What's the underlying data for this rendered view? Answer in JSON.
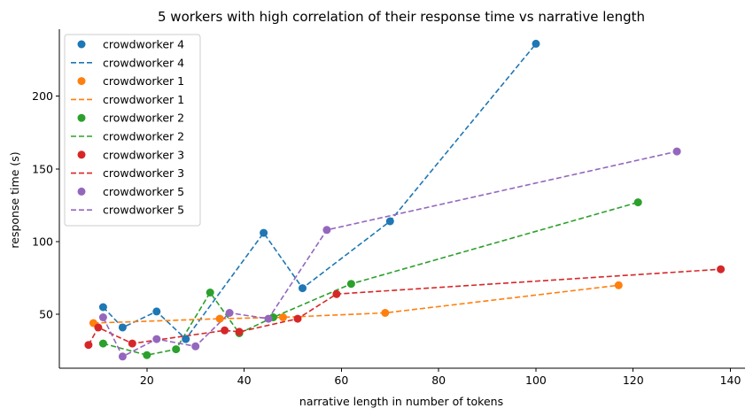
{
  "chart_data": {
    "type": "scatter",
    "title": "5 workers with high correlation of their response time vs narrative length",
    "xlabel": "narrative length in number of tokens",
    "ylabel": "response time (s)",
    "xlim": [
      2,
      143
    ],
    "ylim": [
      13,
      246
    ],
    "xticks": [
      20,
      40,
      60,
      80,
      100,
      120,
      140
    ],
    "yticks": [
      50,
      100,
      150,
      200
    ],
    "grid": false,
    "legend_position": "upper-left",
    "series": [
      {
        "name": "crowdworker 4",
        "color": "#1f77b4",
        "x": [
          11,
          15,
          22,
          28,
          44,
          52,
          70,
          100
        ],
        "y": [
          55,
          41,
          52,
          33,
          106,
          68,
          114,
          236
        ]
      },
      {
        "name": "crowdworker 1",
        "color": "#ff7f0e",
        "x": [
          9,
          35,
          48,
          69,
          117
        ],
        "y": [
          44,
          47,
          48,
          51,
          70
        ]
      },
      {
        "name": "crowdworker 2",
        "color": "#2ca02c",
        "x": [
          11,
          20,
          26,
          33,
          39,
          46,
          62,
          121
        ],
        "y": [
          30,
          22,
          26,
          65,
          37,
          48,
          71,
          127
        ]
      },
      {
        "name": "crowdworker 3",
        "color": "#d62728",
        "x": [
          8,
          10,
          17,
          36,
          39,
          51,
          59,
          138
        ],
        "y": [
          29,
          41,
          30,
          39,
          38,
          47,
          64,
          81
        ]
      },
      {
        "name": "crowdworker 5",
        "color": "#9467bd",
        "x": [
          11,
          15,
          22,
          30,
          37,
          45,
          57,
          129
        ],
        "y": [
          48,
          21,
          33,
          28,
          51,
          47,
          108,
          162
        ]
      }
    ]
  }
}
